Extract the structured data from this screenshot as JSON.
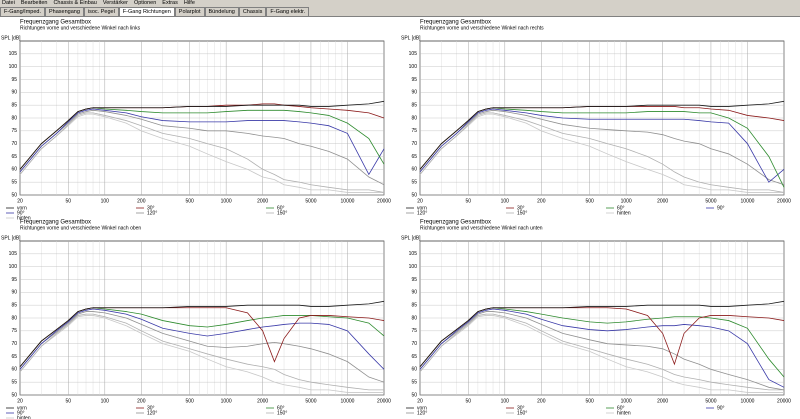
{
  "menu": [
    "Datei",
    "Bearbeiten",
    "Chassis & Einbau",
    "Verstärker",
    "Optionen",
    "Extras",
    "Hilfe"
  ],
  "tabs": [
    "F-Gang/Imped.",
    "Phasengang",
    "isoc. Pegel",
    "F-Gang Richtungen",
    "Polarplot",
    "Bündelung",
    "Chassis",
    "F-Gang elektr."
  ],
  "active_tab": 3,
  "chart_data": [
    {
      "type": "line",
      "title": "Frequenzgang Gesamtbox",
      "subtitle": "Richtungen vorne und verschiedene Winkel nach links",
      "ylabel": "SPL [dB]",
      "xscale": "log",
      "grid": true,
      "xlim": [
        20,
        20000
      ],
      "xticks": [
        20,
        50,
        100,
        200,
        500,
        1000,
        2000,
        5000,
        10000,
        20000
      ],
      "xminor": [
        30,
        40,
        60,
        70,
        80,
        90,
        300,
        400,
        600,
        700,
        800,
        900,
        3000,
        4000,
        6000,
        7000,
        8000,
        9000
      ],
      "ylim": [
        50,
        110
      ],
      "yticks": [
        50,
        55,
        60,
        65,
        70,
        75,
        80,
        85,
        90,
        95,
        100,
        105
      ],
      "x": [
        20,
        30,
        40,
        50,
        60,
        70,
        80,
        100,
        150,
        200,
        300,
        500,
        700,
        1000,
        1500,
        2000,
        2500,
        3000,
        4000,
        5000,
        7000,
        10000,
        15000,
        20000
      ],
      "series": [
        {
          "name": "vorn",
          "color": "#1a1a1a",
          "values": [
            60,
            70,
            75,
            79,
            82.5,
            83.5,
            84,
            84,
            84,
            84,
            84,
            84.5,
            84.5,
            84.5,
            85,
            85,
            85,
            85,
            85,
            84.5,
            84.5,
            85,
            85.5,
            86.5
          ]
        },
        {
          "name": "30°",
          "color": "#8b1a1a",
          "values": [
            60,
            70,
            75,
            79,
            82.5,
            83.5,
            84,
            84,
            84,
            84,
            84,
            84.5,
            84.5,
            85,
            85,
            85.5,
            85.5,
            85,
            84.5,
            84,
            83.5,
            83,
            82,
            80
          ]
        },
        {
          "name": "60°",
          "color": "#2e8b2e",
          "values": [
            60,
            70,
            75,
            79,
            82.5,
            83.5,
            84,
            83.5,
            83,
            82.5,
            82,
            82,
            82,
            82.5,
            83,
            83,
            83,
            83,
            82.5,
            82,
            81,
            78,
            72,
            62
          ]
        },
        {
          "name": "90°",
          "color": "#3a3aa8",
          "values": [
            59,
            69,
            74,
            78.5,
            82,
            83,
            83.5,
            83,
            82,
            80.5,
            79,
            78.5,
            78.5,
            78.5,
            79,
            79,
            79,
            79,
            78.5,
            78,
            77,
            74,
            58,
            68
          ]
        },
        {
          "name": "120°",
          "color": "#909090",
          "values": [
            59,
            69,
            74,
            78,
            81.5,
            82.5,
            83,
            82.5,
            81,
            79.5,
            77,
            76,
            75,
            75,
            74,
            73,
            72.5,
            72,
            70,
            69,
            67,
            64,
            57,
            54
          ]
        },
        {
          "name": "150°",
          "color": "#b0b0b0",
          "values": [
            58,
            68,
            73,
            77.5,
            81,
            82,
            82,
            81,
            79,
            77,
            74,
            72,
            70,
            68,
            64,
            60,
            58,
            56,
            55,
            54,
            53,
            52,
            52,
            51
          ]
        },
        {
          "name": "hinten",
          "color": "#c8c8c8",
          "values": [
            58,
            68,
            73,
            77,
            80.5,
            81.5,
            81.5,
            80.5,
            78,
            75,
            72,
            69,
            66,
            63,
            60,
            57,
            56,
            54,
            53,
            52,
            52,
            51,
            51,
            51
          ]
        }
      ]
    },
    {
      "type": "line",
      "title": "Frequenzgang Gesamtbox",
      "subtitle": "Richtungen vorne und verschiedene Winkel nach rechts",
      "ylabel": "SPL [dB]",
      "xscale": "log",
      "grid": true,
      "xlim": [
        20,
        20000
      ],
      "xticks": [
        20,
        50,
        100,
        200,
        500,
        1000,
        2000,
        5000,
        10000,
        20000
      ],
      "xminor": [
        30,
        40,
        60,
        70,
        80,
        90,
        300,
        400,
        600,
        700,
        800,
        900,
        3000,
        4000,
        6000,
        7000,
        8000,
        9000
      ],
      "ylim": [
        50,
        110
      ],
      "yticks": [
        50,
        55,
        60,
        65,
        70,
        75,
        80,
        85,
        90,
        95,
        100,
        105
      ],
      "x": [
        20,
        30,
        40,
        50,
        60,
        70,
        80,
        100,
        150,
        200,
        300,
        500,
        700,
        1000,
        1500,
        2000,
        2500,
        3000,
        4000,
        5000,
        7000,
        10000,
        15000,
        20000
      ],
      "series": [
        {
          "name": "vorn",
          "color": "#1a1a1a",
          "values": [
            60,
            70,
            75,
            79,
            82.5,
            83.5,
            84,
            84,
            84,
            84,
            84,
            84.5,
            84.5,
            84.5,
            85,
            85,
            85,
            85,
            85,
            84.5,
            84.5,
            85,
            85.5,
            86.5
          ]
        },
        {
          "name": "30°",
          "color": "#8b1a1a",
          "values": [
            60,
            70,
            75,
            79,
            82.5,
            83.5,
            84,
            84,
            84,
            84,
            84,
            84.5,
            84.5,
            84.5,
            84.5,
            84.5,
            84.5,
            84,
            84,
            83.5,
            83,
            81,
            80,
            79
          ]
        },
        {
          "name": "60°",
          "color": "#2e8b2e",
          "values": [
            60,
            70,
            75,
            79,
            82.5,
            83.5,
            84,
            83.5,
            83,
            82.5,
            82,
            82,
            82,
            82,
            82.5,
            82.5,
            82.5,
            82.5,
            82,
            82,
            80,
            76,
            65,
            53
          ]
        },
        {
          "name": "90°",
          "color": "#3a3aa8",
          "values": [
            59,
            69,
            74,
            78.5,
            82,
            83,
            83.5,
            83,
            82,
            81,
            80,
            79.5,
            79.5,
            79.5,
            79.5,
            79.5,
            79.5,
            79.5,
            79,
            78.5,
            78,
            70,
            55,
            60
          ]
        },
        {
          "name": "120°",
          "color": "#909090",
          "values": [
            59,
            69,
            74,
            78,
            81.5,
            82.5,
            83,
            82.5,
            81,
            79.5,
            77.5,
            76,
            75.5,
            75,
            74.5,
            73.5,
            72,
            71,
            70,
            68,
            66,
            62,
            56,
            54
          ]
        },
        {
          "name": "150°",
          "color": "#b0b0b0",
          "values": [
            58,
            68,
            73,
            77.5,
            81,
            82,
            82,
            81,
            79,
            77,
            74,
            72,
            70,
            68,
            65,
            62,
            59,
            57,
            55,
            54,
            53,
            52,
            52,
            51
          ]
        },
        {
          "name": "hinten",
          "color": "#c8c8c8",
          "values": [
            58,
            68,
            73,
            77,
            80.5,
            81.5,
            81.5,
            80.5,
            78,
            75,
            72,
            69,
            66,
            63,
            60,
            58,
            56,
            54,
            53,
            52,
            52,
            51,
            51,
            51
          ]
        }
      ]
    },
    {
      "type": "line",
      "title": "Frequenzgang Gesamtbox",
      "subtitle": "Richtungen vorne und verschiedene Winkel nach oben",
      "ylabel": "SPL [dB]",
      "xscale": "log",
      "grid": true,
      "xlim": [
        20,
        20000
      ],
      "xticks": [
        20,
        50,
        100,
        200,
        500,
        1000,
        2000,
        5000,
        10000,
        20000
      ],
      "xminor": [
        30,
        40,
        60,
        70,
        80,
        90,
        300,
        400,
        600,
        700,
        800,
        900,
        3000,
        4000,
        6000,
        7000,
        8000,
        9000
      ],
      "ylim": [
        50,
        110
      ],
      "yticks": [
        50,
        55,
        60,
        65,
        70,
        75,
        80,
        85,
        90,
        95,
        100,
        105
      ],
      "x": [
        20,
        30,
        40,
        50,
        60,
        70,
        80,
        100,
        150,
        200,
        300,
        500,
        700,
        1000,
        1500,
        2000,
        2500,
        3000,
        4000,
        5000,
        7000,
        10000,
        15000,
        20000
      ],
      "series": [
        {
          "name": "vorn",
          "color": "#1a1a1a",
          "values": [
            61,
            71,
            75.5,
            79,
            82.5,
            83.5,
            84,
            84,
            84,
            84,
            84,
            84.5,
            84.5,
            84.5,
            85,
            85,
            85,
            85,
            85,
            84.5,
            84.5,
            85,
            85.5,
            86.5
          ]
        },
        {
          "name": "30°",
          "color": "#8b1a1a",
          "values": [
            61,
            71,
            75.5,
            79,
            82.5,
            83.5,
            84,
            84,
            84,
            84,
            84,
            84,
            84,
            84,
            82,
            75,
            63,
            72,
            80,
            81,
            81,
            80.5,
            80,
            79
          ]
        },
        {
          "name": "60°",
          "color": "#2e8b2e",
          "values": [
            61,
            71,
            75.5,
            79,
            82.5,
            83.5,
            84,
            83.5,
            82.5,
            81.5,
            79,
            77,
            76.5,
            77.5,
            79,
            80,
            80.5,
            81,
            81,
            81,
            80.5,
            80,
            78,
            73
          ]
        },
        {
          "name": "90°",
          "color": "#3a3aa8",
          "values": [
            60,
            70,
            75,
            78.5,
            82,
            83,
            83.5,
            83,
            81.5,
            79.5,
            76,
            74,
            73,
            74,
            75.5,
            76.5,
            77,
            77.5,
            78,
            78,
            77.5,
            75,
            66,
            60
          ]
        },
        {
          "name": "120°",
          "color": "#909090",
          "values": [
            60,
            70,
            74.5,
            78,
            81.5,
            82.5,
            82.5,
            82,
            80,
            77.5,
            74,
            71,
            69,
            68.5,
            69,
            70,
            70.5,
            70,
            69,
            68,
            66,
            63,
            57,
            55
          ]
        },
        {
          "name": "150°",
          "color": "#b0b0b0",
          "values": [
            59,
            69,
            74,
            77.5,
            81,
            81.5,
            81.5,
            80.5,
            78,
            75,
            71,
            68,
            66,
            64,
            62,
            61,
            60,
            58,
            56,
            55,
            54,
            53,
            52,
            52
          ]
        },
        {
          "name": "hinten",
          "color": "#c8c8c8",
          "values": [
            59,
            69,
            73.5,
            77,
            80.5,
            81,
            81,
            80,
            77,
            74,
            70,
            67,
            64,
            61,
            59,
            57,
            55,
            54,
            53,
            52,
            52,
            51,
            51,
            51
          ]
        }
      ]
    },
    {
      "type": "line",
      "title": "Frequenzgang Gesamtbox",
      "subtitle": "Richtungen vorne und verschiedene Winkel nach unten",
      "ylabel": "SPL [dB]",
      "xscale": "log",
      "grid": true,
      "xlim": [
        20,
        20000
      ],
      "xticks": [
        20,
        50,
        100,
        200,
        500,
        1000,
        2000,
        5000,
        10000,
        20000
      ],
      "xminor": [
        30,
        40,
        60,
        70,
        80,
        90,
        300,
        400,
        600,
        700,
        800,
        900,
        3000,
        4000,
        6000,
        7000,
        8000,
        9000
      ],
      "ylim": [
        50,
        110
      ],
      "yticks": [
        50,
        55,
        60,
        65,
        70,
        75,
        80,
        85,
        90,
        95,
        100,
        105
      ],
      "x": [
        20,
        30,
        40,
        50,
        60,
        70,
        80,
        100,
        150,
        200,
        300,
        500,
        700,
        1000,
        1500,
        2000,
        2500,
        3000,
        4000,
        5000,
        7000,
        10000,
        15000,
        20000
      ],
      "series": [
        {
          "name": "vorn",
          "color": "#1a1a1a",
          "values": [
            61,
            71,
            75.5,
            79,
            82.5,
            83.5,
            84,
            84,
            84,
            84,
            84,
            84.5,
            84.5,
            84.5,
            85,
            85,
            85,
            85,
            85,
            84.5,
            84.5,
            85,
            85.5,
            86.5
          ]
        },
        {
          "name": "30°",
          "color": "#8b1a1a",
          "values": [
            61,
            71,
            75.5,
            79,
            82.5,
            83.5,
            84,
            84,
            84,
            84,
            84,
            84,
            84,
            83.5,
            81,
            74,
            62,
            74,
            80,
            81,
            81,
            80.5,
            80,
            79
          ]
        },
        {
          "name": "60°",
          "color": "#2e8b2e",
          "values": [
            61,
            71,
            75.5,
            79,
            82.5,
            83.5,
            84,
            83.5,
            82.5,
            81.5,
            80,
            78.5,
            78,
            78.5,
            79.5,
            80,
            80.5,
            80.5,
            80.5,
            80,
            79,
            76,
            64,
            57
          ]
        },
        {
          "name": "90°",
          "color": "#3a3aa8",
          "values": [
            60,
            70,
            75,
            78.5,
            82,
            83,
            83.5,
            83,
            81.5,
            79.5,
            77,
            75.5,
            75,
            75.5,
            76.5,
            77,
            77,
            77.5,
            77,
            76.5,
            75,
            70,
            56,
            53
          ]
        },
        {
          "name": "120°",
          "color": "#909090",
          "values": [
            60,
            70,
            74.5,
            78,
            81.5,
            82.5,
            82.5,
            82,
            80,
            77.5,
            74,
            71.5,
            70,
            69.5,
            69,
            68,
            66,
            64,
            62,
            60,
            58,
            56,
            53,
            52
          ]
        },
        {
          "name": "150°",
          "color": "#b0b0b0",
          "values": [
            59,
            69,
            74,
            77.5,
            81,
            81.5,
            81.5,
            80.5,
            78,
            75,
            71,
            68,
            66,
            64,
            62,
            60,
            58,
            57,
            56,
            55,
            54,
            53,
            52,
            52
          ]
        },
        {
          "name": "hinten",
          "color": "#c8c8c8",
          "values": [
            59,
            69,
            73.5,
            77,
            80.5,
            81,
            81,
            80,
            77,
            74,
            70,
            67,
            64,
            61,
            59,
            57,
            55,
            54,
            53,
            52,
            52,
            51,
            51,
            51
          ]
        }
      ]
    }
  ]
}
